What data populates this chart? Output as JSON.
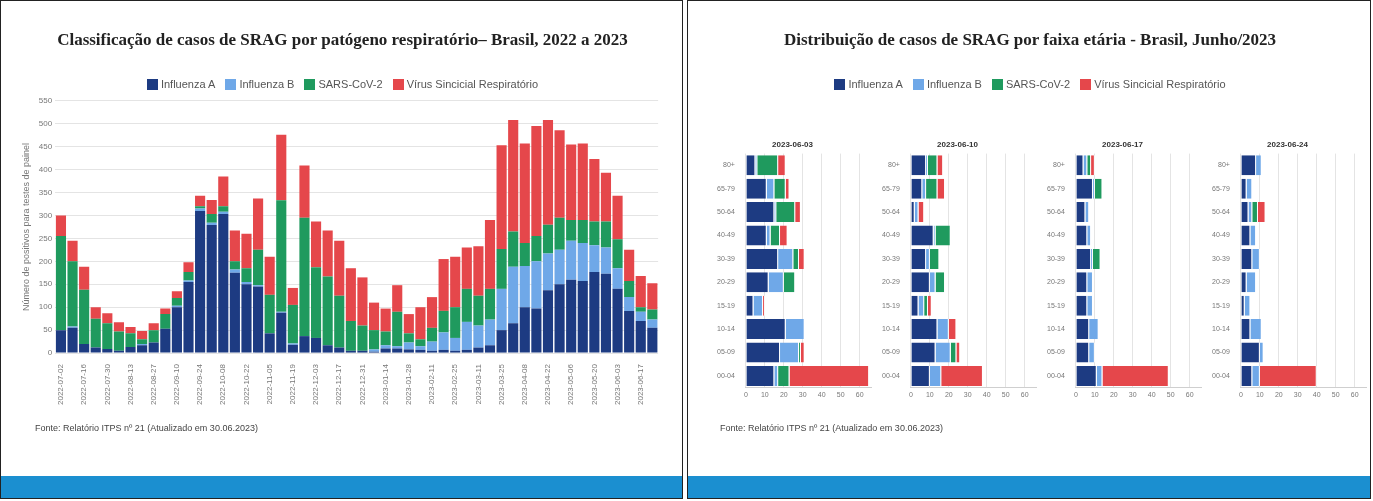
{
  "chart_data": [
    {
      "type": "bar",
      "title": "Classificação de casos de SRAG por patógeno respiratório– Brasil, 2022 a 2023",
      "ylabel": "Número de positivos para testes de painel",
      "stacked": true,
      "legend": "top",
      "grid": "y",
      "ylim": [
        0,
        550
      ],
      "yticks": [
        0,
        50,
        100,
        150,
        200,
        250,
        300,
        350,
        400,
        450,
        500,
        550
      ],
      "annotations": [
        "Fonte: Relatório ITPS nº 21 (Atualizado em 30.06.2023)"
      ],
      "categories": [
        "2022-07-02",
        null,
        "2022-07-16",
        null,
        "2022-07-30",
        null,
        "2022-08-13",
        null,
        "2022-08-27",
        null,
        "2022-09-10",
        null,
        "2022-09-24",
        null,
        "2022-10-08",
        null,
        "2022-10-22",
        null,
        "2022-11-05",
        null,
        "2022-11-19",
        null,
        "2022-12-03",
        null,
        "2022-12-17",
        null,
        "2022-12-31",
        null,
        "2023-01-14",
        null,
        "2023-01-28",
        null,
        "2023-02-11",
        null,
        "2023-02-25",
        null,
        "2023-03-11",
        null,
        "2023-03-25",
        null,
        "2023-04-08",
        null,
        "2023-04-22",
        null,
        "2023-05-06",
        null,
        "2023-05-20",
        null,
        "2023-06-03",
        null,
        "2023-06-17",
        null
      ],
      "series": [
        {
          "name": "Influenza A",
          "color": "#1d3b82",
          "values": [
            50,
            55,
            20,
            12,
            9,
            5,
            13,
            17,
            23,
            53,
            100,
            155,
            310,
            279,
            303,
            175,
            150,
            145,
            43,
            88,
            18,
            37,
            33,
            17,
            12,
            5,
            5,
            3,
            10,
            10,
            8,
            7,
            5,
            7,
            5,
            7,
            12,
            17,
            50,
            65,
            100,
            97,
            137,
            150,
            160,
            157,
            177,
            173,
            140,
            92,
            70,
            55
          ]
        },
        {
          "name": "Influenza B",
          "color": "#6fa8e8",
          "values": [
            0,
            3,
            0,
            0,
            0,
            0,
            0,
            3,
            0,
            0,
            3,
            3,
            5,
            5,
            5,
            7,
            5,
            3,
            0,
            2,
            3,
            0,
            0,
            0,
            0,
            0,
            0,
            5,
            7,
            5,
            15,
            8,
            20,
            38,
            28,
            61,
            48,
            56,
            90,
            123,
            90,
            103,
            80,
            75,
            85,
            83,
            58,
            57,
            45,
            30,
            20,
            18
          ]
        },
        {
          "name": "SARS-CoV-2",
          "color": "#1f9a5e",
          "values": [
            205,
            142,
            118,
            63,
            56,
            42,
            30,
            10,
            27,
            32,
            17,
            19,
            5,
            19,
            12,
            18,
            30,
            77,
            84,
            243,
            84,
            258,
            154,
            150,
            113,
            65,
            55,
            42,
            30,
            75,
            20,
            15,
            30,
            47,
            67,
            72,
            65,
            67,
            87,
            77,
            50,
            55,
            63,
            70,
            45,
            50,
            52,
            57,
            63,
            35,
            10,
            22
          ]
        },
        {
          "name": "Vírus Sincicial Respiratório",
          "color": "#e5474b",
          "values": [
            45,
            45,
            50,
            25,
            22,
            20,
            14,
            18,
            15,
            12,
            15,
            21,
            23,
            31,
            65,
            67,
            75,
            112,
            83,
            143,
            37,
            114,
            100,
            100,
            120,
            115,
            105,
            60,
            50,
            58,
            42,
            70,
            67,
            113,
            110,
            90,
            108,
            150,
            226,
            243,
            217,
            240,
            228,
            191,
            165,
            167,
            136,
            106,
            95,
            68,
            68,
            57
          ]
        }
      ]
    },
    {
      "type": "bar",
      "title": "Distribuição de casos de SRAG por faixa etária - Brasil, Junho/2023",
      "subtitle": "2023-06-03",
      "orientation": "horizontal",
      "stacked": true,
      "legend": "top",
      "grid": "x",
      "xlim": [
        0,
        66
      ],
      "xticks": [
        0,
        10,
        20,
        30,
        40,
        50,
        60
      ],
      "annotations": [
        "Fonte: Relatório ITPS nº 21 (Atualizado em 30.06.2023)"
      ],
      "categories": [
        "80+",
        "65-79",
        "50-64",
        "40-49",
        "30-39",
        "20-29",
        "15-19",
        "10-14",
        "05-09",
        "00-04"
      ],
      "series": [
        {
          "name": "Influenza A",
          "color": "#1d3b82",
          "values": [
            5,
            11,
            15,
            11,
            17,
            12,
            4,
            21,
            18,
            15
          ]
        },
        {
          "name": "Influenza B",
          "color": "#6fa8e8",
          "values": [
            1,
            4,
            1,
            2,
            8,
            8,
            5,
            10,
            10,
            2
          ]
        },
        {
          "name": "SARS-CoV-2",
          "color": "#1f9a5e",
          "values": [
            11,
            6,
            10,
            5,
            3,
            6,
            0,
            0,
            1,
            6
          ]
        },
        {
          "name": "Vírus Sincicial Respiratório",
          "color": "#e5474b",
          "values": [
            4,
            2,
            3,
            4,
            3,
            0,
            1,
            0,
            2,
            42
          ]
        }
      ]
    },
    {
      "type": "bar",
      "subtitle": "2023-06-10",
      "orientation": "horizontal",
      "stacked": true,
      "grid": "x",
      "xlim": [
        0,
        66
      ],
      "xticks": [
        0,
        10,
        20,
        30,
        40,
        50,
        60
      ],
      "categories": [
        "80+",
        "65-79",
        "50-64",
        "40-49",
        "30-39",
        "20-29",
        "15-19",
        "10-14",
        "05-09",
        "00-04"
      ],
      "series": [
        {
          "color": "#1d3b82",
          "values": [
            8,
            6,
            2,
            12,
            8,
            10,
            4,
            14,
            13,
            10
          ]
        },
        {
          "color": "#6fa8e8",
          "values": [
            1,
            2,
            2,
            1,
            2,
            3,
            3,
            6,
            8,
            6
          ]
        },
        {
          "color": "#1f9a5e",
          "values": [
            5,
            6,
            0,
            8,
            5,
            5,
            2,
            0,
            3,
            0
          ]
        },
        {
          "color": "#e5474b",
          "values": [
            3,
            4,
            3,
            0,
            0,
            0,
            2,
            4,
            2,
            22
          ]
        }
      ]
    },
    {
      "type": "bar",
      "subtitle": "2023-06-17",
      "orientation": "horizontal",
      "stacked": true,
      "grid": "x",
      "xlim": [
        0,
        66
      ],
      "xticks": [
        0,
        10,
        20,
        30,
        40,
        50,
        60
      ],
      "categories": [
        "80+",
        "65-79",
        "50-64",
        "40-49",
        "30-39",
        "20-29",
        "15-19",
        "10-14",
        "05-09",
        "00-04"
      ],
      "series": [
        {
          "color": "#1d3b82",
          "values": [
            4,
            9,
            5,
            6,
            8,
            6,
            6,
            7,
            7,
            11
          ]
        },
        {
          "color": "#6fa8e8",
          "values": [
            2,
            1,
            2,
            2,
            1,
            3,
            3,
            5,
            3,
            3
          ]
        },
        {
          "color": "#1f9a5e",
          "values": [
            2,
            4,
            0,
            0,
            4,
            0,
            0,
            0,
            0,
            0
          ]
        },
        {
          "color": "#e5474b",
          "values": [
            2,
            0,
            0,
            0,
            0,
            0,
            0,
            0,
            0,
            35
          ]
        }
      ]
    },
    {
      "type": "bar",
      "subtitle": "2023-06-24",
      "orientation": "horizontal",
      "stacked": true,
      "grid": "x",
      "xlim": [
        0,
        66
      ],
      "xticks": [
        0,
        10,
        20,
        30,
        40,
        50,
        60
      ],
      "categories": [
        "80+",
        "65-79",
        "50-64",
        "40-49",
        "30-39",
        "20-29",
        "15-19",
        "10-14",
        "05-09",
        "00-04"
      ],
      "series": [
        {
          "color": "#1d3b82",
          "values": [
            8,
            3,
            4,
            5,
            6,
            3,
            2,
            5,
            10,
            6
          ]
        },
        {
          "color": "#6fa8e8",
          "values": [
            3,
            3,
            2,
            3,
            4,
            5,
            3,
            6,
            2,
            4
          ]
        },
        {
          "color": "#1f9a5e",
          "values": [
            0,
            0,
            3,
            0,
            0,
            0,
            0,
            0,
            0,
            0
          ]
        },
        {
          "color": "#e5474b",
          "values": [
            0,
            0,
            4,
            0,
            0,
            0,
            0,
            0,
            0,
            30
          ]
        }
      ]
    }
  ]
}
